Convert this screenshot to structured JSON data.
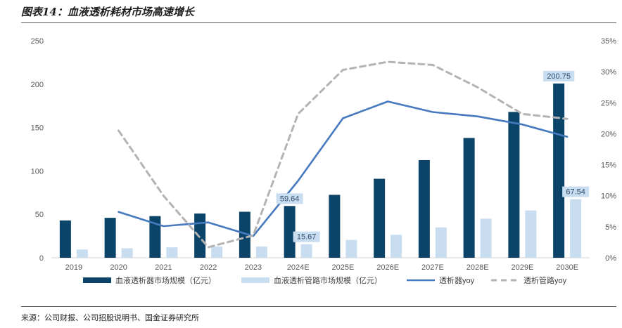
{
  "figure": {
    "title": "图表14：血液透析耗材市场高速增长",
    "source": "来源：公司财报、公司招股说明书、国金证券研究所"
  },
  "colors": {
    "dialyzer_bar": "#0b4468",
    "tubing_bar": "#c9ddf1",
    "dialyzer_yoy_line": "#4679bd",
    "tubing_yoy_line": "#b3b3b3",
    "label_bg": "#c9ddf1"
  },
  "chart_data": {
    "type": "bar",
    "categories": [
      "2019",
      "2020",
      "2021",
      "2022",
      "2023",
      "2024E",
      "2025E",
      "2026E",
      "2027E",
      "2028E",
      "2029E",
      "2030E"
    ],
    "ylim": [
      0,
      250
    ],
    "yticks": [
      "0",
      "50",
      "100",
      "150",
      "200",
      "250"
    ],
    "y2lim": [
      0,
      0.35
    ],
    "y2ticks": [
      "0%",
      "5%",
      "10%",
      "15%",
      "20%",
      "25%",
      "30%",
      "35%"
    ],
    "grid": false,
    "legend_position": "bottom",
    "series": [
      {
        "name": "血液透析器市场规模（亿元）",
        "kind": "bar",
        "axis": "left",
        "color": "#0b4468",
        "values": [
          43,
          46,
          48,
          51,
          53,
          59.64,
          72.5,
          91,
          112.5,
          138,
          168,
          200.75
        ]
      },
      {
        "name": "血液透析管路市场规模（亿元）",
        "kind": "bar",
        "axis": "left",
        "color": "#c9ddf1",
        "values": [
          9.5,
          11,
          12,
          13,
          13,
          15.67,
          20.5,
          26.5,
          35,
          45,
          54.5,
          67.54
        ]
      },
      {
        "name": "透析器yoy",
        "kind": "line",
        "axis": "right",
        "color": "#4679bd",
        "dash": false,
        "values": [
          null,
          0.074,
          0.051,
          0.057,
          0.035,
          0.124,
          0.225,
          0.252,
          0.235,
          0.228,
          0.215,
          0.195
        ]
      },
      {
        "name": "透析管路yoy",
        "kind": "line",
        "axis": "right",
        "color": "#b3b3b3",
        "dash": true,
        "values": [
          null,
          0.205,
          0.1,
          0.017,
          0.036,
          0.232,
          0.303,
          0.316,
          0.311,
          0.275,
          0.232,
          0.224
        ]
      }
    ],
    "data_labels": [
      {
        "series": 0,
        "index": 5,
        "text": "59.64"
      },
      {
        "series": 1,
        "index": 5,
        "text": "15.67"
      },
      {
        "series": 0,
        "index": 11,
        "text": "200.75"
      },
      {
        "series": 1,
        "index": 11,
        "text": "67.54"
      }
    ]
  }
}
